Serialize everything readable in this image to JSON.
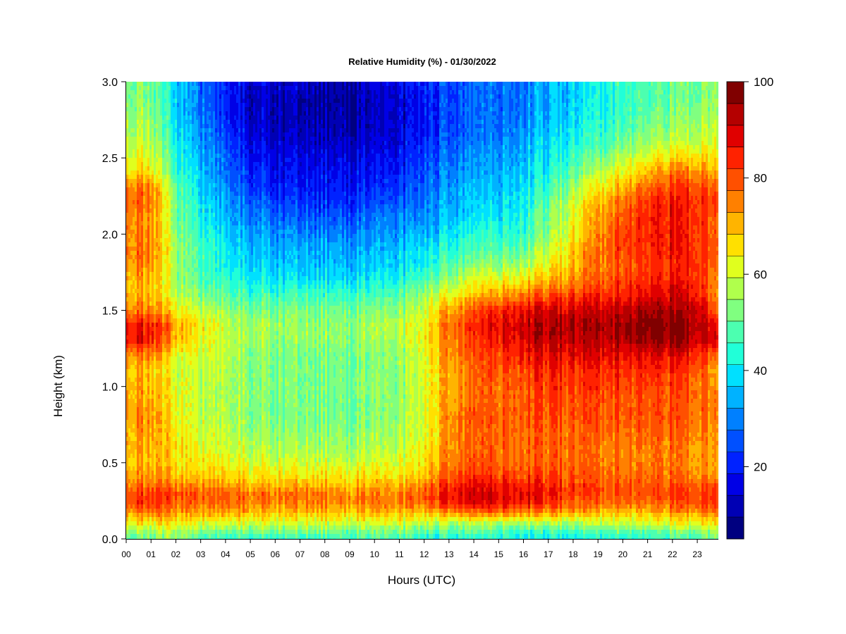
{
  "chart_data": {
    "type": "heatmap",
    "title": "Relative Humidity (%) - 01/30/2022",
    "xlabel": "Hours (UTC)",
    "ylabel": "Height (km)",
    "xlim": [
      0,
      23.85
    ],
    "ylim": [
      0.0,
      3.0
    ],
    "x_ticks": [
      "00",
      "01",
      "02",
      "03",
      "04",
      "05",
      "06",
      "07",
      "08",
      "09",
      "10",
      "11",
      "12",
      "13",
      "14",
      "15",
      "16",
      "17",
      "18",
      "19",
      "20",
      "21",
      "22",
      "23"
    ],
    "y_ticks": [
      "0.0",
      "0.5",
      "1.0",
      "1.5",
      "2.0",
      "2.5",
      "3.0"
    ],
    "colorbar": {
      "range": [
        5,
        100
      ],
      "ticks": [
        "20",
        "40",
        "60",
        "80",
        "100"
      ],
      "tick_values": [
        20,
        40,
        60,
        80,
        100
      ],
      "levels": 19,
      "colors": [
        "#000080",
        "#0000b4",
        "#0000e6",
        "#0022ff",
        "#0050ff",
        "#0080ff",
        "#00b2ff",
        "#00e0ff",
        "#21ffd8",
        "#4cffb0",
        "#80ff80",
        "#b0ff4c",
        "#e0ff1e",
        "#ffe000",
        "#ffb400",
        "#ff8000",
        "#ff5000",
        "#ff2200",
        "#e00000",
        "#b40000",
        "#800000"
      ]
    },
    "heights_km": [
      0.0,
      0.05,
      0.1,
      0.15,
      0.2,
      0.25,
      0.3,
      0.35,
      0.4,
      0.5,
      0.6,
      0.7,
      0.8,
      0.9,
      1.0,
      1.1,
      1.2,
      1.3,
      1.4,
      1.5,
      1.6,
      1.7,
      1.8,
      1.9,
      2.0,
      2.1,
      2.2,
      2.3,
      2.4,
      2.5,
      2.6,
      2.7,
      2.8,
      2.9,
      3.0
    ],
    "hours": [
      0,
      1,
      2,
      3,
      4,
      5,
      6,
      7,
      8,
      9,
      10,
      11,
      12,
      13,
      14,
      15,
      16,
      17,
      18,
      19,
      20,
      21,
      22,
      23,
      23.85
    ],
    "rh_percent": [
      [
        50,
        52,
        54,
        46,
        44,
        44,
        44,
        44,
        46,
        46,
        46,
        46,
        44,
        42,
        42,
        42,
        42,
        40,
        40,
        42,
        44,
        44,
        46,
        48,
        50
      ],
      [
        56,
        56,
        58,
        52,
        52,
        52,
        52,
        52,
        52,
        52,
        52,
        52,
        50,
        48,
        48,
        48,
        46,
        46,
        46,
        48,
        50,
        50,
        52,
        54,
        56
      ],
      [
        64,
        64,
        64,
        60,
        60,
        60,
        60,
        60,
        60,
        60,
        60,
        60,
        58,
        56,
        56,
        56,
        56,
        56,
        56,
        58,
        60,
        60,
        62,
        64,
        64
      ],
      [
        72,
        72,
        70,
        68,
        68,
        68,
        66,
        66,
        66,
        66,
        66,
        66,
        66,
        68,
        70,
        70,
        70,
        68,
        66,
        66,
        66,
        66,
        68,
        70,
        72
      ],
      [
        80,
        80,
        76,
        74,
        74,
        74,
        72,
        72,
        72,
        72,
        72,
        72,
        74,
        80,
        82,
        82,
        82,
        78,
        76,
        74,
        74,
        74,
        76,
        78,
        80
      ],
      [
        84,
        84,
        80,
        78,
        78,
        76,
        76,
        76,
        76,
        76,
        76,
        76,
        80,
        86,
        88,
        88,
        88,
        84,
        80,
        78,
        78,
        78,
        80,
        82,
        84
      ],
      [
        82,
        82,
        80,
        78,
        78,
        76,
        76,
        76,
        76,
        74,
        74,
        74,
        80,
        86,
        88,
        88,
        88,
        86,
        82,
        80,
        80,
        80,
        82,
        82,
        82
      ],
      [
        78,
        78,
        76,
        74,
        72,
        72,
        70,
        70,
        70,
        70,
        70,
        70,
        76,
        84,
        86,
        86,
        86,
        84,
        82,
        80,
        80,
        80,
        80,
        80,
        78
      ],
      [
        74,
        74,
        70,
        68,
        68,
        66,
        66,
        66,
        66,
        66,
        66,
        66,
        70,
        80,
        82,
        82,
        82,
        82,
        80,
        78,
        78,
        78,
        78,
        76,
        74
      ],
      [
        70,
        70,
        66,
        64,
        62,
        62,
        60,
        60,
        60,
        60,
        60,
        60,
        66,
        76,
        78,
        78,
        78,
        78,
        78,
        76,
        76,
        76,
        76,
        74,
        70
      ],
      [
        72,
        72,
        66,
        62,
        60,
        58,
        56,
        56,
        56,
        56,
        56,
        58,
        64,
        74,
        76,
        78,
        78,
        78,
        78,
        76,
        76,
        76,
        76,
        74,
        72
      ],
      [
        72,
        72,
        64,
        60,
        58,
        56,
        54,
        54,
        54,
        54,
        54,
        56,
        62,
        74,
        76,
        78,
        78,
        78,
        78,
        78,
        78,
        78,
        78,
        76,
        72
      ],
      [
        74,
        74,
        64,
        58,
        56,
        54,
        52,
        52,
        52,
        52,
        52,
        54,
        62,
        74,
        78,
        78,
        80,
        80,
        80,
        80,
        80,
        80,
        80,
        78,
        74
      ],
      [
        74,
        72,
        62,
        58,
        56,
        54,
        52,
        52,
        52,
        52,
        52,
        54,
        62,
        72,
        76,
        78,
        80,
        80,
        80,
        80,
        80,
        80,
        80,
        78,
        74
      ],
      [
        72,
        70,
        62,
        58,
        56,
        54,
        52,
        52,
        52,
        52,
        52,
        54,
        62,
        72,
        76,
        78,
        80,
        82,
        82,
        82,
        82,
        82,
        80,
        78,
        72
      ],
      [
        70,
        70,
        60,
        58,
        56,
        54,
        52,
        52,
        52,
        52,
        52,
        54,
        62,
        72,
        76,
        80,
        82,
        84,
        84,
        84,
        84,
        84,
        84,
        80,
        70
      ],
      [
        76,
        74,
        62,
        60,
        58,
        54,
        52,
        52,
        52,
        52,
        52,
        54,
        62,
        74,
        78,
        82,
        86,
        88,
        88,
        88,
        88,
        88,
        88,
        84,
        76
      ],
      [
        88,
        86,
        70,
        62,
        58,
        56,
        54,
        54,
        54,
        54,
        54,
        56,
        64,
        76,
        80,
        86,
        90,
        92,
        92,
        92,
        94,
        96,
        96,
        92,
        88
      ],
      [
        88,
        86,
        72,
        64,
        58,
        56,
        56,
        54,
        54,
        54,
        56,
        58,
        64,
        78,
        82,
        88,
        92,
        94,
        94,
        94,
        96,
        98,
        98,
        94,
        88
      ],
      [
        76,
        76,
        64,
        58,
        54,
        52,
        52,
        52,
        52,
        52,
        52,
        54,
        60,
        72,
        78,
        84,
        88,
        90,
        90,
        90,
        92,
        94,
        94,
        92,
        76
      ],
      [
        72,
        70,
        58,
        52,
        48,
        46,
        46,
        46,
        46,
        46,
        46,
        48,
        56,
        62,
        68,
        72,
        76,
        80,
        82,
        84,
        86,
        88,
        90,
        88,
        72
      ],
      [
        72,
        70,
        56,
        48,
        44,
        42,
        40,
        40,
        40,
        40,
        40,
        42,
        48,
        54,
        60,
        62,
        66,
        70,
        74,
        78,
        82,
        84,
        86,
        84,
        72
      ],
      [
        76,
        74,
        56,
        46,
        40,
        38,
        36,
        36,
        36,
        36,
        36,
        38,
        42,
        48,
        52,
        54,
        56,
        62,
        70,
        76,
        80,
        82,
        84,
        84,
        76
      ],
      [
        78,
        76,
        56,
        46,
        40,
        36,
        34,
        34,
        34,
        34,
        34,
        36,
        40,
        44,
        46,
        48,
        50,
        58,
        68,
        76,
        82,
        84,
        86,
        84,
        78
      ],
      [
        76,
        74,
        54,
        44,
        38,
        34,
        32,
        30,
        30,
        30,
        30,
        32,
        36,
        40,
        42,
        44,
        46,
        54,
        64,
        74,
        82,
        84,
        86,
        84,
        76
      ],
      [
        76,
        74,
        52,
        42,
        34,
        30,
        28,
        26,
        26,
        26,
        28,
        30,
        32,
        36,
        38,
        40,
        44,
        52,
        62,
        72,
        80,
        84,
        86,
        84,
        76
      ],
      [
        80,
        78,
        52,
        40,
        32,
        28,
        24,
        22,
        22,
        22,
        24,
        26,
        30,
        34,
        36,
        38,
        42,
        50,
        60,
        70,
        78,
        84,
        86,
        84,
        80
      ],
      [
        78,
        76,
        50,
        38,
        30,
        24,
        20,
        20,
        20,
        20,
        20,
        22,
        28,
        32,
        34,
        36,
        40,
        46,
        56,
        64,
        72,
        78,
        82,
        82,
        78
      ],
      [
        68,
        66,
        46,
        36,
        28,
        22,
        18,
        18,
        18,
        18,
        18,
        20,
        26,
        30,
        32,
        34,
        38,
        42,
        50,
        58,
        64,
        70,
        76,
        76,
        68
      ],
      [
        64,
        62,
        44,
        34,
        26,
        20,
        16,
        16,
        16,
        16,
        16,
        18,
        24,
        28,
        30,
        32,
        36,
        40,
        46,
        52,
        58,
        62,
        66,
        68,
        64
      ],
      [
        60,
        58,
        42,
        32,
        24,
        18,
        14,
        14,
        14,
        14,
        14,
        16,
        22,
        26,
        28,
        30,
        34,
        38,
        42,
        46,
        52,
        56,
        58,
        60,
        60
      ],
      [
        58,
        56,
        40,
        30,
        22,
        16,
        12,
        12,
        12,
        12,
        12,
        14,
        20,
        24,
        26,
        28,
        32,
        36,
        40,
        44,
        48,
        52,
        54,
        56,
        58
      ],
      [
        56,
        54,
        38,
        28,
        20,
        14,
        12,
        10,
        10,
        10,
        12,
        14,
        20,
        24,
        26,
        28,
        30,
        34,
        38,
        42,
        46,
        50,
        52,
        54,
        56
      ],
      [
        54,
        52,
        38,
        28,
        20,
        14,
        12,
        12,
        10,
        10,
        12,
        14,
        20,
        24,
        26,
        28,
        30,
        34,
        38,
        42,
        46,
        48,
        50,
        52,
        54
      ],
      [
        54,
        52,
        38,
        28,
        20,
        16,
        14,
        14,
        12,
        12,
        14,
        16,
        22,
        24,
        26,
        28,
        30,
        34,
        38,
        42,
        46,
        48,
        50,
        52,
        54
      ]
    ]
  }
}
